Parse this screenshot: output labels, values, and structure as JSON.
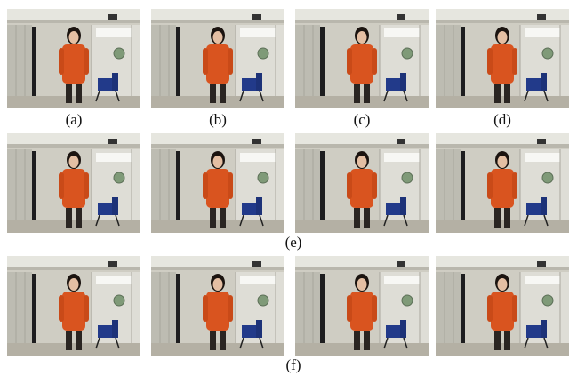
{
  "figure": {
    "row_1_labels": [
      "(a)",
      "(b)",
      "(c)",
      "(d)"
    ],
    "row_2_label": "(e)",
    "row_3_label": "(f)"
  }
}
